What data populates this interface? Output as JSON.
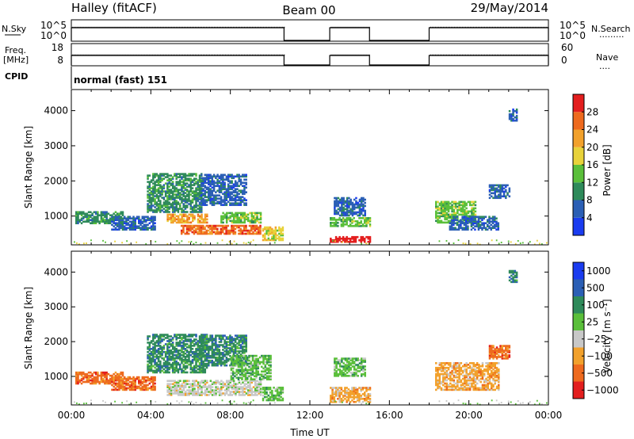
{
  "header": {
    "station": "Halley (fitACF)",
    "beam": "Beam 00",
    "date": "29/May/2014"
  },
  "side_labels": {
    "nsky": "N.Sky",
    "freq_top": "Freq.",
    "freq_bottom": "[MHz]",
    "cpid": "CPID",
    "nsearch": "N.Search",
    "nave": "Nave",
    "nsearch_dots": "·········",
    "nave_dots": "····"
  },
  "cpid_text": "normal (fast) 151",
  "colors": {
    "power": [
      "#1a3cf0",
      "#2b5fb5",
      "#2e8a5a",
      "#5abf3a",
      "#e8d23a",
      "#f2a12c",
      "#ee6a1e",
      "#e31e1e"
    ],
    "velocity": [
      "#e31e1e",
      "#ee6a1e",
      "#f2a12c",
      "#c8c8c8",
      "#5abf3a",
      "#2e8a5a",
      "#2b5fb5",
      "#1a3cf0"
    ]
  },
  "chart_data": [
    {
      "type": "line",
      "name": "N.Sky / N.Search",
      "y_ticks_left": [
        "10^5",
        "10^0"
      ],
      "y_ticks_right": [
        "10^5",
        "10^0"
      ],
      "operating_intervals_hours": [
        [
          0,
          10.7
        ],
        [
          13.0,
          15.0
        ],
        [
          18.0,
          24.0
        ]
      ]
    },
    {
      "type": "line",
      "name": "Freq / Nave",
      "y_ticks_left": [
        "18",
        "8"
      ],
      "y_ticks_right": [
        "60",
        "0"
      ],
      "operating_intervals_hours": [
        [
          0,
          10.7
        ],
        [
          13.0,
          15.0
        ],
        [
          18.0,
          24.0
        ]
      ]
    },
    {
      "type": "heatmap",
      "ylabel": "Slant Range [km]",
      "y_ticks": [
        "4000",
        "3000",
        "2000",
        "1000"
      ],
      "ylim": [
        180,
        4600
      ],
      "colorbar_label": "Power [dB]",
      "colorbar_ticks": [
        "28",
        "24",
        "20",
        "16",
        "12",
        "8",
        "4"
      ],
      "regions": [
        {
          "x": [
            0.2,
            2.6
          ],
          "y": [
            780,
            1130
          ],
          "level": 2
        },
        {
          "x": [
            2.0,
            4.2
          ],
          "y": [
            600,
            980
          ],
          "level": 1
        },
        {
          "x": [
            3.8,
            6.5
          ],
          "y": [
            1100,
            2200
          ],
          "level": 2
        },
        {
          "x": [
            4.8,
            6.8
          ],
          "y": [
            800,
            1050
          ],
          "level": 5
        },
        {
          "x": [
            5.5,
            9.5
          ],
          "y": [
            480,
            720
          ],
          "level": 6
        },
        {
          "x": [
            6.5,
            8.8
          ],
          "y": [
            1300,
            2200
          ],
          "level": 1
        },
        {
          "x": [
            7.5,
            9.5
          ],
          "y": [
            800,
            1100
          ],
          "level": 3
        },
        {
          "x": [
            9.6,
            10.6
          ],
          "y": [
            300,
            700
          ],
          "level": 4
        },
        {
          "x": [
            13.0,
            15.0
          ],
          "y": [
            250,
            420
          ],
          "level": 7
        },
        {
          "x": [
            13.0,
            15.0
          ],
          "y": [
            700,
            950
          ],
          "level": 3
        },
        {
          "x": [
            13.2,
            14.8
          ],
          "y": [
            1000,
            1500
          ],
          "level": 1
        },
        {
          "x": [
            18.3,
            20.3
          ],
          "y": [
            800,
            1400
          ],
          "level": 3
        },
        {
          "x": [
            19.0,
            21.5
          ],
          "y": [
            600,
            1000
          ],
          "level": 1
        },
        {
          "x": [
            21.0,
            22.0
          ],
          "y": [
            1500,
            1900
          ],
          "level": 1
        },
        {
          "x": [
            22.0,
            22.4
          ],
          "y": [
            3700,
            4050
          ],
          "level": 1
        }
      ]
    },
    {
      "type": "heatmap",
      "xlabel": "Time UT",
      "ylabel": "Slant Range [km]",
      "x_ticks": [
        "00:00",
        "04:00",
        "08:00",
        "12:00",
        "16:00",
        "20:00",
        "00:00"
      ],
      "y_ticks": [
        "4000",
        "3000",
        "2000",
        "1000"
      ],
      "ylim": [
        180,
        4600
      ],
      "colorbar_label": "Velocity [m s⁻¹]",
      "colorbar_ticks": [
        "1000",
        "500",
        "100",
        "25",
        "−25",
        "−100",
        "−500",
        "−1000"
      ],
      "regions": [
        {
          "x": [
            0.2,
            2.6
          ],
          "y": [
            780,
            1130
          ],
          "level": 1
        },
        {
          "x": [
            2.0,
            4.2
          ],
          "y": [
            600,
            980
          ],
          "level": 1
        },
        {
          "x": [
            3.8,
            6.8
          ],
          "y": [
            1100,
            2200
          ],
          "level": 5
        },
        {
          "x": [
            4.8,
            9.5
          ],
          "y": [
            450,
            900
          ],
          "level": 3
        },
        {
          "x": [
            6.5,
            8.8
          ],
          "y": [
            1300,
            2200
          ],
          "level": 5
        },
        {
          "x": [
            8.0,
            10.0
          ],
          "y": [
            900,
            1600
          ],
          "level": 4
        },
        {
          "x": [
            9.6,
            10.6
          ],
          "y": [
            300,
            700
          ],
          "level": 4
        },
        {
          "x": [
            13.0,
            15.0
          ],
          "y": [
            250,
            700
          ],
          "level": 2
        },
        {
          "x": [
            13.2,
            14.8
          ],
          "y": [
            1000,
            1500
          ],
          "level": 4
        },
        {
          "x": [
            18.3,
            21.5
          ],
          "y": [
            600,
            1400
          ],
          "level": 2
        },
        {
          "x": [
            21.0,
            22.0
          ],
          "y": [
            1500,
            1900
          ],
          "level": 1
        },
        {
          "x": [
            22.0,
            22.4
          ],
          "y": [
            3700,
            4050
          ],
          "level": 5
        }
      ]
    }
  ]
}
